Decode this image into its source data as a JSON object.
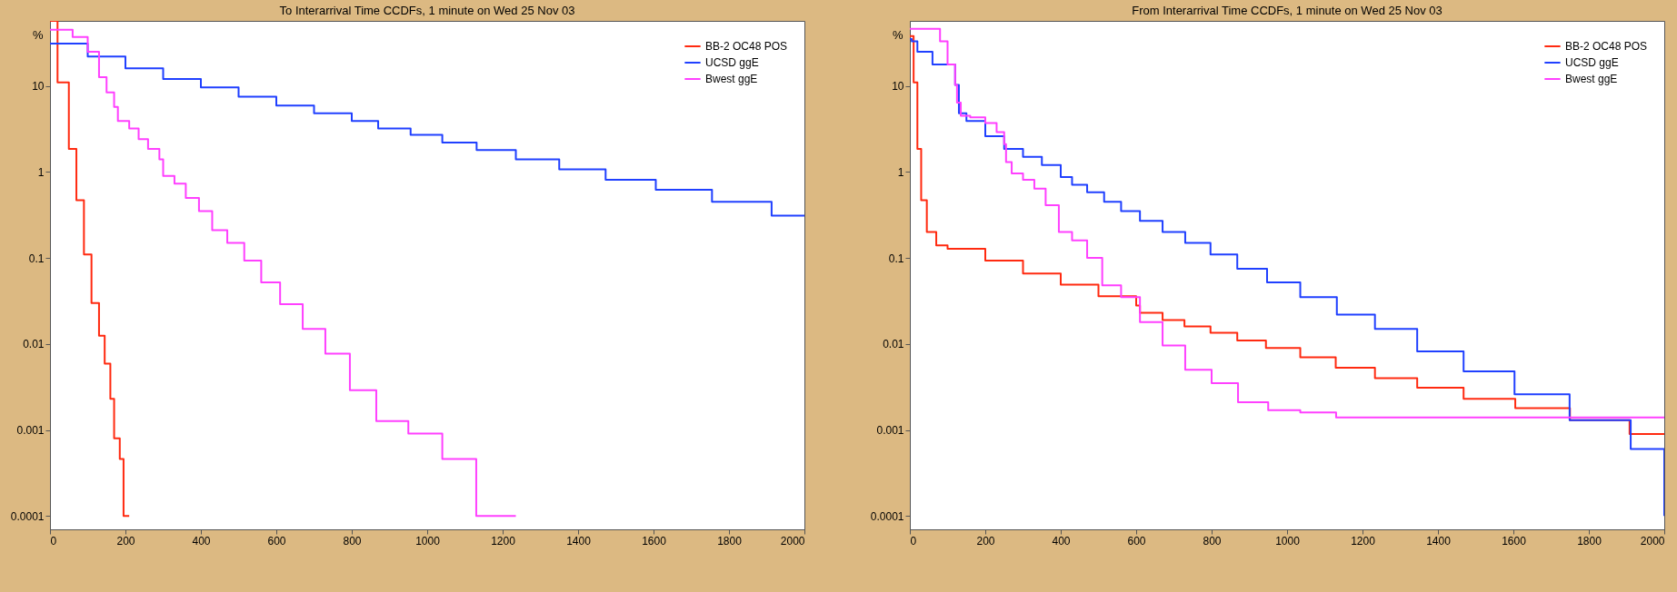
{
  "chart_data": [
    {
      "type": "step",
      "title": "To Interarrival Time CCDFs, 1 minute on Wed 25 Nov 03",
      "ylabel": "%",
      "log": "y",
      "legend": "top right",
      "xlim": [
        0,
        2000
      ],
      "xticks": [
        0,
        200,
        400,
        600,
        800,
        1000,
        1200,
        1400,
        1600,
        1800,
        2000
      ],
      "ylim": [
        7e-05,
        57
      ],
      "yticks": [
        0.0001,
        0.001,
        0.01,
        0.1,
        1,
        10
      ],
      "series": [
        {
          "name": "BB-2 OC48 POS",
          "color": "#ff2a10",
          "x": [
            0,
            20,
            50,
            70,
            90,
            110,
            130,
            145,
            160,
            170,
            185,
            195,
            210
          ],
          "values": [
            57,
            11,
            1.85,
            0.47,
            0.11,
            0.03,
            0.0125,
            0.0059,
            0.0023,
            0.0008,
            0.00046,
            0.0001,
            0.0001
          ]
        },
        {
          "name": "UCSD ggE",
          "color": "#2040ff",
          "x": [
            0,
            100,
            200,
            300,
            400,
            500,
            600,
            700,
            800,
            870,
            956,
            1040,
            1131,
            1235,
            1350,
            1473,
            1606,
            1755,
            1913,
            2000
          ],
          "values": [
            31,
            22,
            16,
            12,
            9.6,
            7.5,
            5.9,
            4.8,
            3.9,
            3.2,
            2.7,
            2.2,
            1.8,
            1.4,
            1.07,
            0.81,
            0.62,
            0.45,
            0.31,
            0.31
          ]
        },
        {
          "name": "Bwest ggE",
          "color": "#ff40ff",
          "x": [
            0,
            30,
            60,
            100,
            130,
            150,
            170,
            180,
            210,
            235,
            260,
            290,
            300,
            330,
            360,
            395,
            430,
            470,
            515,
            560,
            610,
            670,
            730,
            795,
            865,
            950,
            1040,
            1130,
            1235
          ],
          "values": [
            45,
            45,
            37,
            25,
            12.6,
            8.4,
            5.7,
            3.9,
            3.2,
            2.4,
            1.85,
            1.4,
            0.9,
            0.73,
            0.5,
            0.35,
            0.21,
            0.15,
            0.093,
            0.052,
            0.029,
            0.015,
            0.0077,
            0.0029,
            0.00127,
            0.00091,
            0.00046,
            0.0001,
            0.0001
          ]
        }
      ]
    },
    {
      "type": "step",
      "title": "From Interarrival Time CCDFs, 1 minute on Wed 25 Nov 03",
      "ylabel": "%",
      "log": "y",
      "legend": "top right",
      "xlim": [
        0,
        2000
      ],
      "xticks": [
        0,
        200,
        400,
        600,
        800,
        1000,
        1200,
        1400,
        1600,
        1800,
        2000
      ],
      "ylim": [
        7e-05,
        57
      ],
      "yticks": [
        0.0001,
        0.001,
        0.01,
        0.1,
        1,
        10
      ],
      "series": [
        {
          "name": "BB-2 OC48 POS",
          "color": "#ff2a10",
          "x": [
            0,
            10,
            20,
            30,
            45,
            70,
            100,
            200,
            300,
            400,
            500,
            600,
            610,
            670,
            728,
            797,
            868,
            944,
            1035,
            1129,
            1233,
            1345,
            1468,
            1605,
            1750,
            1908,
            2000
          ],
          "values": [
            38,
            11,
            1.85,
            0.47,
            0.2,
            0.14,
            0.128,
            0.093,
            0.066,
            0.049,
            0.036,
            0.028,
            0.023,
            0.019,
            0.016,
            0.0135,
            0.011,
            0.009,
            0.007,
            0.0053,
            0.004,
            0.0031,
            0.0023,
            0.0018,
            0.0013,
            0.0009,
            0.0009
          ]
        },
        {
          "name": "UCSD ggE",
          "color": "#2040ff",
          "x": [
            0,
            5,
            20,
            60,
            120,
            130,
            150,
            200,
            250,
            300,
            350,
            400,
            430,
            470,
            515,
            560,
            610,
            670,
            730,
            797,
            868,
            947,
            1035,
            1132,
            1233,
            1345,
            1468,
            1603,
            1749,
            1911,
            2000
          ],
          "values": [
            35,
            33,
            25,
            17.7,
            10.3,
            4.8,
            3.9,
            2.6,
            1.85,
            1.5,
            1.2,
            0.87,
            0.71,
            0.58,
            0.45,
            0.35,
            0.27,
            0.2,
            0.15,
            0.11,
            0.075,
            0.052,
            0.035,
            0.022,
            0.015,
            0.0082,
            0.0048,
            0.0026,
            0.0013,
            0.0006,
            0.0001
          ]
        },
        {
          "name": "Bwest ggE",
          "color": "#ff40ff",
          "x": [
            0,
            65,
            80,
            100,
            120,
            125,
            135,
            160,
            200,
            230,
            250,
            255,
            270,
            300,
            330,
            360,
            395,
            430,
            470,
            510,
            560,
            610,
            670,
            730,
            800,
            870,
            950,
            1035,
            1130,
            2000
          ],
          "values": [
            46,
            46,
            33,
            17.7,
            10.3,
            6.4,
            4.5,
            4.3,
            3.7,
            2.9,
            2.1,
            1.3,
            0.96,
            0.81,
            0.64,
            0.41,
            0.2,
            0.16,
            0.1,
            0.048,
            0.035,
            0.018,
            0.0096,
            0.005,
            0.0035,
            0.0021,
            0.0017,
            0.0016,
            0.0014,
            0.0014
          ]
        }
      ]
    }
  ]
}
